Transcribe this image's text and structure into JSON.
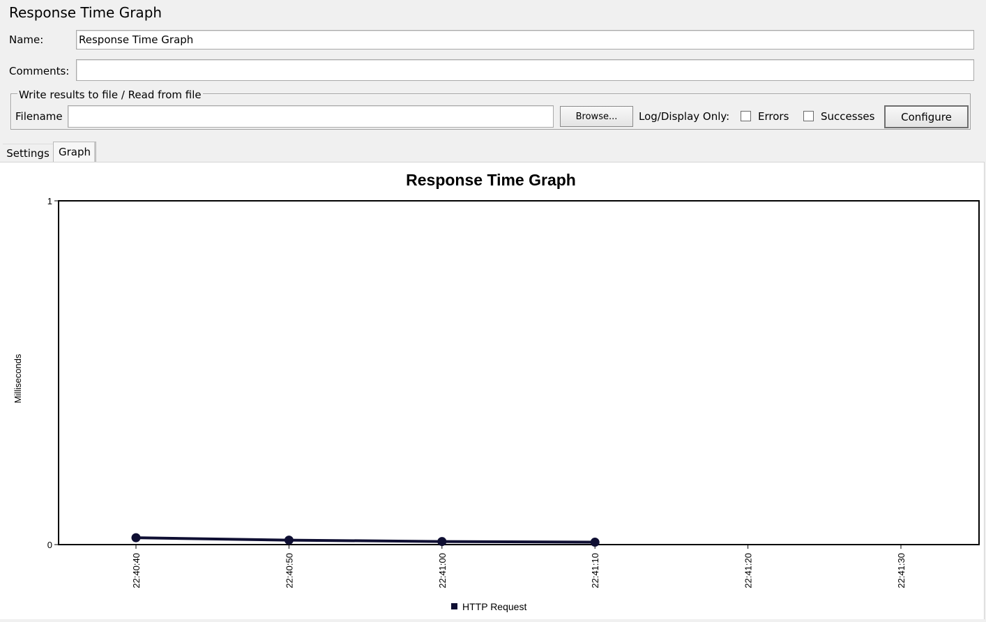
{
  "panel": {
    "title": "Response Time Graph"
  },
  "form": {
    "name_label": "Name:",
    "name_value": "Response Time Graph",
    "comments_label": "Comments:",
    "comments_value": ""
  },
  "file_group": {
    "legend": "Write results to file / Read from file",
    "filename_label": "Filename",
    "filename_value": "",
    "browse_label": "Browse...",
    "log_display_label": "Log/Display Only:",
    "errors_label": "Errors",
    "errors_checked": false,
    "successes_label": "Successes",
    "successes_checked": false,
    "configure_label": "Configure"
  },
  "tabs": [
    {
      "label": "Settings",
      "selected": false
    },
    {
      "label": "Graph",
      "selected": true
    }
  ],
  "chart_data": {
    "type": "line",
    "title": "Response Time Graph",
    "ylabel": "Milliseconds",
    "xlabel": "",
    "ylim": [
      0,
      1
    ],
    "y_ticks": [
      "0",
      "1"
    ],
    "x_ticks": [
      "22:40:40",
      "22:40:50",
      "22:41:00",
      "22:41:10",
      "22:41:20",
      "22:41:30"
    ],
    "grid": false,
    "legend_position": "bottom",
    "series": [
      {
        "name": "HTTP Request",
        "color": "#0f0f33",
        "x": [
          "22:40:40",
          "22:40:50",
          "22:41:00",
          "22:41:10"
        ],
        "values": [
          0.02,
          0.013,
          0.009,
          0.007
        ]
      }
    ]
  }
}
